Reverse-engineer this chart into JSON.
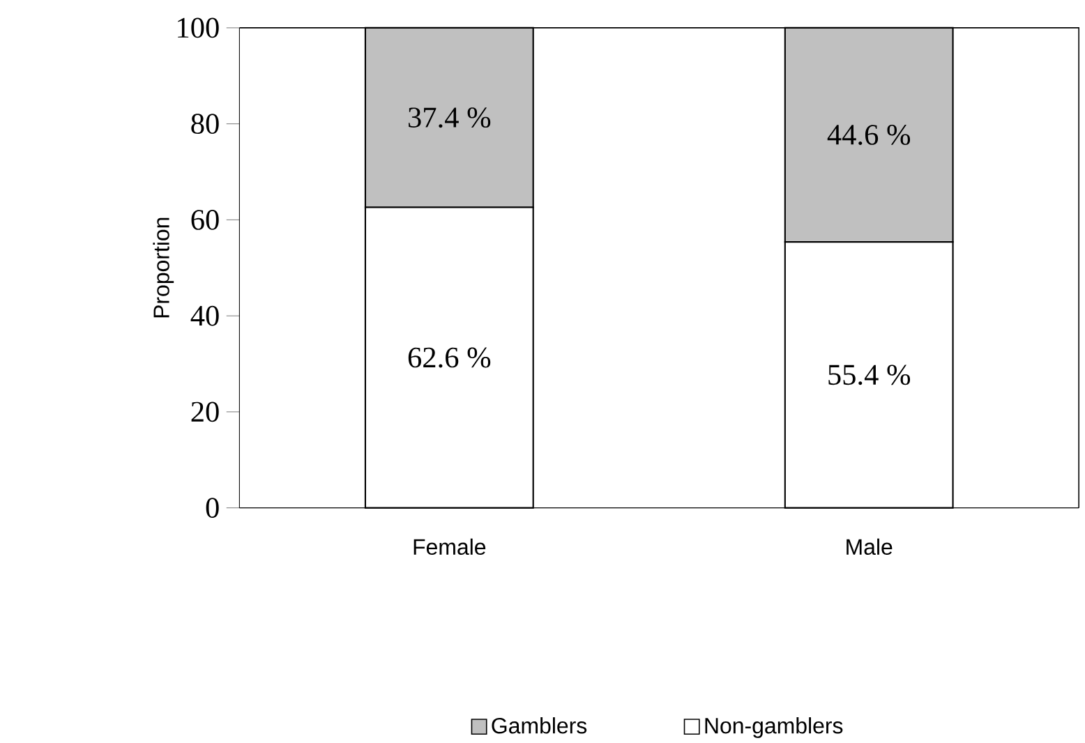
{
  "chart_data": {
    "type": "bar",
    "stacked": true,
    "ylabel": "Proportion",
    "categories": [
      "Female",
      "Male"
    ],
    "series": [
      {
        "name": "Non-gamblers",
        "color": "#ffffff",
        "values": [
          62.6,
          55.4
        ],
        "value_labels": [
          "62.6 %",
          "55.4 %"
        ]
      },
      {
        "name": "Gamblers",
        "color": "#c0c0c0",
        "values": [
          37.4,
          44.6
        ],
        "value_labels": [
          "37.4 %",
          "44.6 %"
        ]
      }
    ],
    "ylim": [
      0,
      100
    ],
    "yticks": [
      0,
      20,
      40,
      60,
      80,
      100
    ],
    "legend": "bottom",
    "grid": false
  }
}
